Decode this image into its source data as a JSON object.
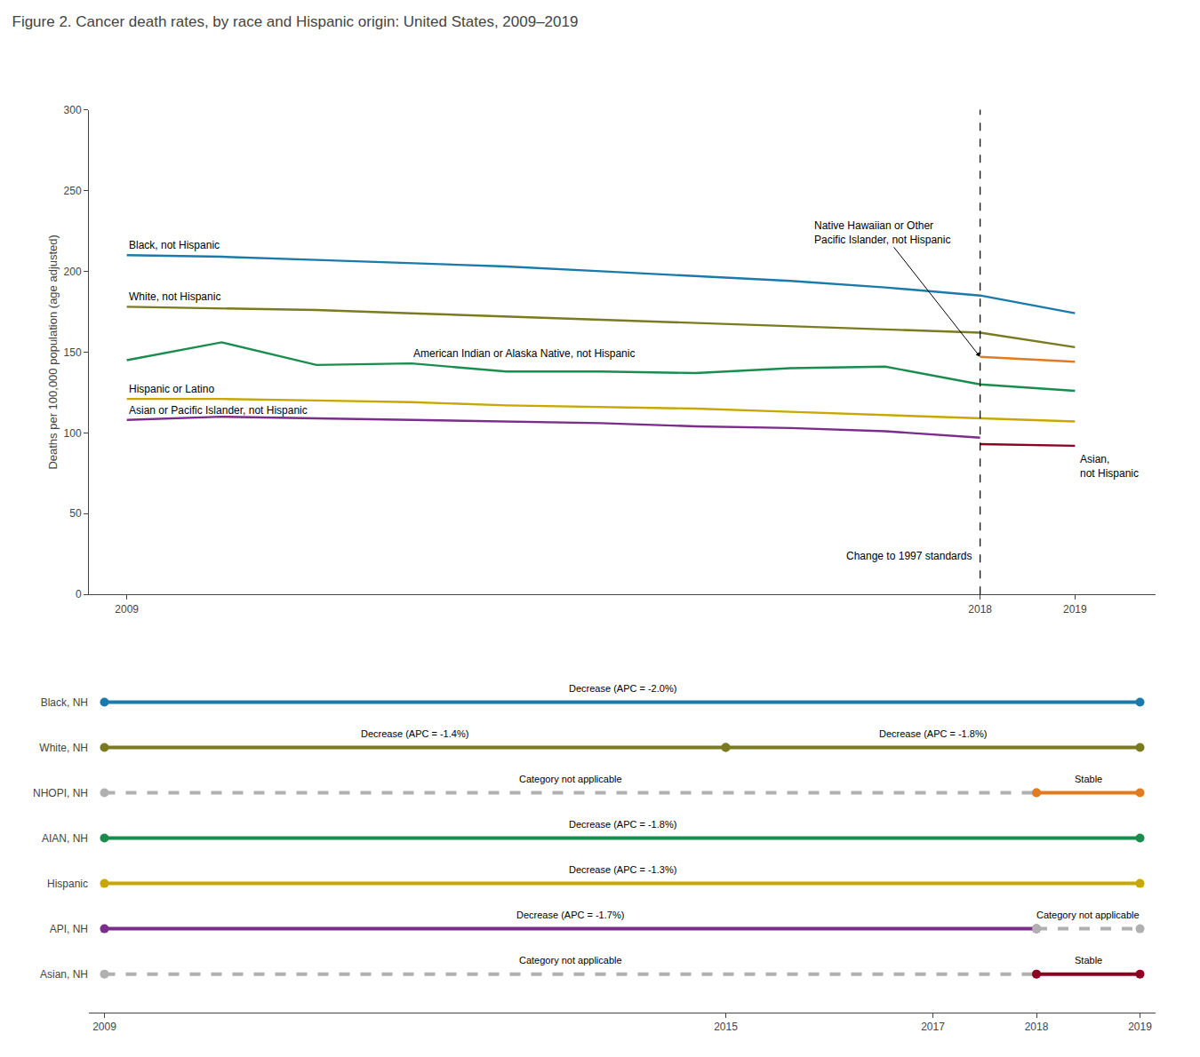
{
  "chart_data": [
    {
      "type": "line",
      "title": "Figure 2. Cancer death rates, by race and Hispanic origin: United States, 2009–2019",
      "ylabel": "Deaths per 100,000 population (age adjusted)",
      "x": [
        2009,
        2010,
        2011,
        2012,
        2013,
        2014,
        2015,
        2016,
        2017,
        2018,
        2019
      ],
      "series": [
        {
          "name": "Black, not Hispanic",
          "color": "#1a7aab",
          "values": [
            210,
            209,
            207,
            205,
            203,
            200,
            197,
            194,
            190,
            185,
            174
          ]
        },
        {
          "name": "White, not Hispanic",
          "color": "#7a7a20",
          "values": [
            178,
            177,
            176,
            174,
            172,
            170,
            168,
            166,
            164,
            162,
            153
          ]
        },
        {
          "name": "American Indian or Alaska Native, not Hispanic",
          "color": "#1a8c4e",
          "values": [
            145,
            156,
            142,
            143,
            138,
            138,
            137,
            140,
            141,
            130,
            126
          ]
        },
        {
          "name": "Hispanic or Latino",
          "color": "#c8a800",
          "values": [
            121,
            121,
            120,
            119,
            117,
            116,
            115,
            113,
            111,
            109,
            107
          ]
        },
        {
          "name": "Asian or Pacific Islander, not Hispanic",
          "color": "#7b2d8b",
          "values": [
            108,
            110,
            109,
            108,
            107,
            106,
            104,
            103,
            101,
            97,
            null
          ]
        },
        {
          "name": "Native Hawaiian or Other Pacific Islander, not Hispanic",
          "color": "#e07b20",
          "values": [
            null,
            null,
            null,
            null,
            null,
            null,
            null,
            null,
            null,
            147,
            144
          ]
        },
        {
          "name": "Asian, not Hispanic",
          "color": "#8b0020",
          "values": [
            null,
            null,
            null,
            null,
            null,
            null,
            null,
            null,
            null,
            93,
            92
          ]
        }
      ],
      "annotations": [
        "Black, not Hispanic",
        "White, not Hispanic",
        "American Indian or Alaska Native, not Hispanic",
        "Hispanic or Latino",
        "Asian or Pacific Islander, not Hispanic",
        "Native Hawaiian or Other\nPacific Islander, not Hispanic",
        "Asian,\nnot Hispanic",
        "Change to 1997 standards"
      ],
      "vlines": [
        2018
      ],
      "xlim": [
        2008.6,
        2019.85
      ],
      "xticks": [
        2009,
        2018,
        2019
      ],
      "ylim": [
        0,
        300
      ],
      "yticks": [
        0,
        50,
        100,
        150,
        200,
        250,
        300
      ],
      "grid": false,
      "legend": false
    },
    {
      "type": "segments",
      "rows": [
        {
          "label": "Black, NH",
          "marker": "circle",
          "segments": [
            {
              "x_start": 2009,
              "x_end": 2019,
              "line_style": "solid",
              "color": "#1a7aab",
              "label": "Decrease (APC = -2.0%)"
            }
          ]
        },
        {
          "label": "White, NH",
          "marker": "circle",
          "segments": [
            {
              "x_start": 2009,
              "x_end": 2015,
              "line_style": "solid",
              "color": "#7a7a20",
              "label": "Decrease (APC = -1.4%)"
            },
            {
              "x_start": 2015,
              "x_end": 2019,
              "line_style": "solid",
              "color": "#7a7a20",
              "label": "Decrease (APC = -1.8%)"
            }
          ]
        },
        {
          "label": "NHOPI, NH",
          "marker": "circle",
          "segments": [
            {
              "x_start": 2009,
              "x_end": 2018,
              "line_style": "dashed",
              "color": "#b0b0b0",
              "label": "Category not applicable"
            },
            {
              "x_start": 2018,
              "x_end": 2019,
              "line_style": "solid",
              "color": "#e07b20",
              "label": "Stable"
            }
          ]
        },
        {
          "label": "AIAN, NH",
          "marker": "circle",
          "segments": [
            {
              "x_start": 2009,
              "x_end": 2019,
              "line_style": "solid",
              "color": "#1a8c4e",
              "label": "Decrease (APC = -1.8%)"
            }
          ]
        },
        {
          "label": "Hispanic",
          "marker": "circle",
          "segments": [
            {
              "x_start": 2009,
              "x_end": 2019,
              "line_style": "solid",
              "color": "#c8a800",
              "label": "Decrease (APC = -1.3%)"
            }
          ]
        },
        {
          "label": "API, NH",
          "marker": "circle",
          "segments": [
            {
              "x_start": 2009,
              "x_end": 2018,
              "line_style": "solid",
              "color": "#7b2d8b",
              "label": "Decrease (APC = -1.7%)"
            },
            {
              "x_start": 2018,
              "x_end": 2019,
              "line_style": "dashed",
              "color": "#b0b0b0",
              "label": "Category not applicable"
            }
          ]
        },
        {
          "label": "Asian, NH",
          "marker": "circle",
          "segments": [
            {
              "x_start": 2009,
              "x_end": 2018,
              "line_style": "dashed",
              "color": "#b0b0b0",
              "label": "Category not applicable"
            },
            {
              "x_start": 2018,
              "x_end": 2019,
              "line_style": "solid",
              "color": "#8b0020",
              "label": "Stable"
            }
          ]
        }
      ],
      "xlim": [
        2008.85,
        2019.15
      ],
      "xticks": [
        2009,
        2015,
        2017,
        2018,
        2019
      ],
      "grid": false,
      "legend": false
    }
  ]
}
